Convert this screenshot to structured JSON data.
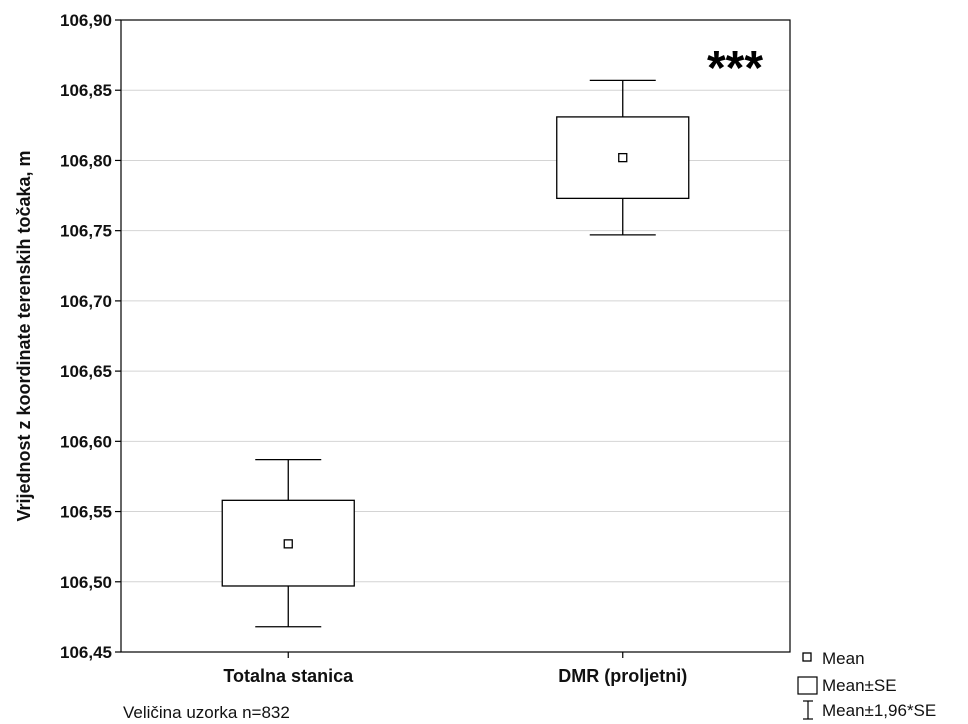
{
  "chart_data": {
    "type": "box",
    "ylabel": "Vrijednost z koordinate terenskih točaka, m",
    "ylim": [
      106.45,
      106.9
    ],
    "yticks": [
      "106,45",
      "106,50",
      "106,55",
      "106,60",
      "106,65",
      "106,70",
      "106,75",
      "106,80",
      "106,85",
      "106,90"
    ],
    "grid": true,
    "categories": [
      "Totalna stanica",
      "DMR (proljetni)"
    ],
    "boxes": [
      {
        "category": "Totalna stanica",
        "mean": 106.527,
        "se_low": 106.497,
        "se_high": 106.558,
        "ci_low": 106.468,
        "ci_high": 106.587
      },
      {
        "category": "DMR (proljetni)",
        "mean": 106.802,
        "se_low": 106.773,
        "se_high": 106.831,
        "ci_low": 106.747,
        "ci_high": 106.857
      }
    ],
    "significance": "***",
    "note": "Veličina uzorka n=832",
    "legend": {
      "placement": "bottom-right",
      "items": [
        "Mean",
        "Mean±SE",
        "Mean±1,96*SE"
      ]
    }
  }
}
